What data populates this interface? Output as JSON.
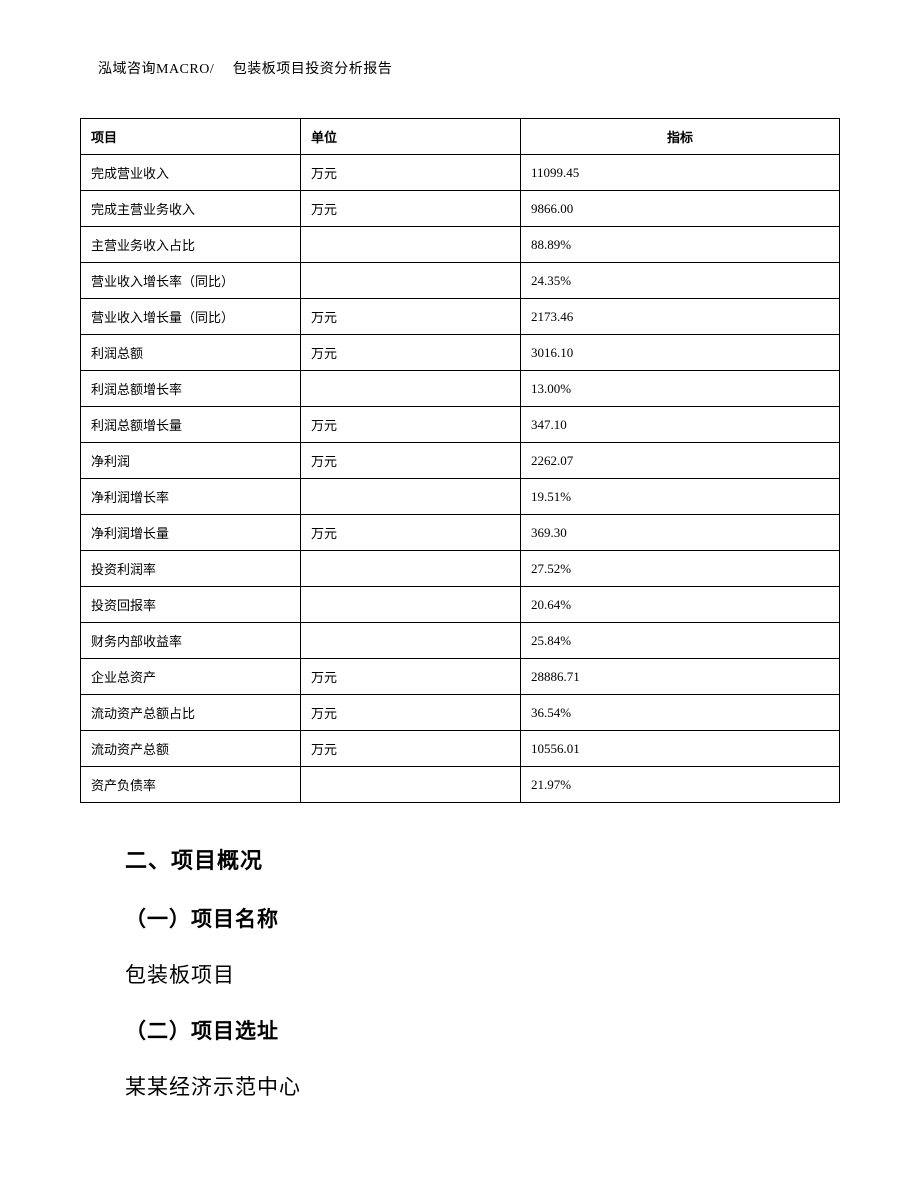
{
  "header": {
    "text": "泓域咨询MACRO/　 包装板项目投资分析报告"
  },
  "table": {
    "columns": {
      "item": "项目",
      "unit": "单位",
      "indicator": "指标"
    },
    "rows": [
      {
        "item": "完成营业收入",
        "unit": "万元",
        "indicator": "11099.45"
      },
      {
        "item": "完成主营业务收入",
        "unit": "万元",
        "indicator": "9866.00"
      },
      {
        "item": "主营业务收入占比",
        "unit": "",
        "indicator": "88.89%"
      },
      {
        "item": "营业收入增长率（同比）",
        "unit": "",
        "indicator": "24.35%"
      },
      {
        "item": "营业收入增长量（同比）",
        "unit": "万元",
        "indicator": "2173.46"
      },
      {
        "item": "利润总额",
        "unit": "万元",
        "indicator": "3016.10"
      },
      {
        "item": "利润总额增长率",
        "unit": "",
        "indicator": "13.00%"
      },
      {
        "item": "利润总额增长量",
        "unit": "万元",
        "indicator": "347.10"
      },
      {
        "item": "净利润",
        "unit": "万元",
        "indicator": "2262.07"
      },
      {
        "item": "净利润增长率",
        "unit": "",
        "indicator": "19.51%"
      },
      {
        "item": "净利润增长量",
        "unit": "万元",
        "indicator": "369.30"
      },
      {
        "item": "投资利润率",
        "unit": "",
        "indicator": "27.52%"
      },
      {
        "item": "投资回报率",
        "unit": "",
        "indicator": "20.64%"
      },
      {
        "item": "财务内部收益率",
        "unit": "",
        "indicator": "25.84%"
      },
      {
        "item": "企业总资产",
        "unit": "万元",
        "indicator": "28886.71"
      },
      {
        "item": "流动资产总额占比",
        "unit": "万元",
        "indicator": "36.54%"
      },
      {
        "item": "流动资产总额",
        "unit": "万元",
        "indicator": "10556.01"
      },
      {
        "item": "资产负债率",
        "unit": "",
        "indicator": "21.97%"
      }
    ]
  },
  "body": {
    "section_heading": "二、项目概况",
    "sub1_heading": "（一）项目名称",
    "sub1_text": "包装板项目",
    "sub2_heading": "（二）项目选址",
    "sub2_text": "某某经济示范中心"
  }
}
